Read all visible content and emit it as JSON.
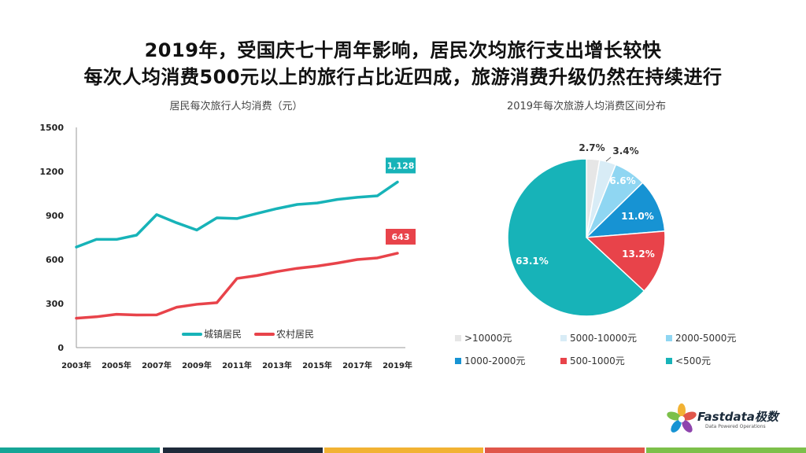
{
  "title": {
    "line1": "2019年，受国庆七十周年影响，居民次均旅行支出增长较快",
    "line2": "每次人均消费500元以上的旅行占比近四成，旅游消费升级仍然在持续进行"
  },
  "logo": {
    "name": "Fastdata极数",
    "tagline": "Data Powered Operations"
  },
  "colors": {
    "urban": "#17b3b8",
    "rural": "#e8434a",
    "bars": [
      "#16a596",
      "#1e2a3a",
      "#f2b233",
      "#e0564a",
      "#7cc04a"
    ]
  },
  "chart_data": [
    {
      "type": "line",
      "title": "居民每次旅行人均消费（元）",
      "x": [
        2003,
        2004,
        2005,
        2006,
        2007,
        2008,
        2009,
        2010,
        2011,
        2012,
        2013,
        2014,
        2015,
        2016,
        2017,
        2018,
        2019
      ],
      "xticklabels": [
        "2003年",
        "2005年",
        "2007年",
        "2009年",
        "2011年",
        "2013年",
        "2015年",
        "2017年",
        "2019年"
      ],
      "yticks": [
        "0",
        "300",
        "600",
        "900",
        "1200",
        "1500"
      ],
      "ylim": [
        0,
        1500
      ],
      "legend": "bottom-center",
      "series": [
        {
          "name": "城镇居民",
          "color": "#17b3b8",
          "values": [
            685,
            737,
            737,
            766,
            906,
            850,
            801,
            884,
            879,
            914,
            947,
            975,
            985,
            1009,
            1024,
            1034,
            1128
          ],
          "end_label": "1,128"
        },
        {
          "name": "农村居民",
          "color": "#e8434a",
          "values": [
            200,
            210,
            227,
            222,
            223,
            275,
            295,
            306,
            471,
            491,
            518,
            540,
            555,
            576,
            600,
            611,
            643
          ],
          "end_label": "643"
        }
      ]
    },
    {
      "type": "pie",
      "title": "2019年每次旅游人均消费区间分布",
      "legend": "bottom",
      "slices": [
        {
          "label": ">10000元",
          "value": 2.7,
          "text": "2.7%",
          "color": "#e6e6e6"
        },
        {
          "label": "5000-10000元",
          "value": 3.4,
          "text": "3.4%",
          "color": "#d8ecf6"
        },
        {
          "label": "2000-5000元",
          "value": 6.6,
          "text": "6.6%",
          "color": "#8fd6f2"
        },
        {
          "label": "1000-2000元",
          "value": 11.0,
          "text": "11.0%",
          "color": "#1793d3"
        },
        {
          "label": "500-1000元",
          "value": 13.2,
          "text": "13.2%",
          "color": "#e8434a"
        },
        {
          "label": "<500元",
          "value": 63.1,
          "text": "63.1%",
          "color": "#17b3b8"
        }
      ]
    }
  ]
}
